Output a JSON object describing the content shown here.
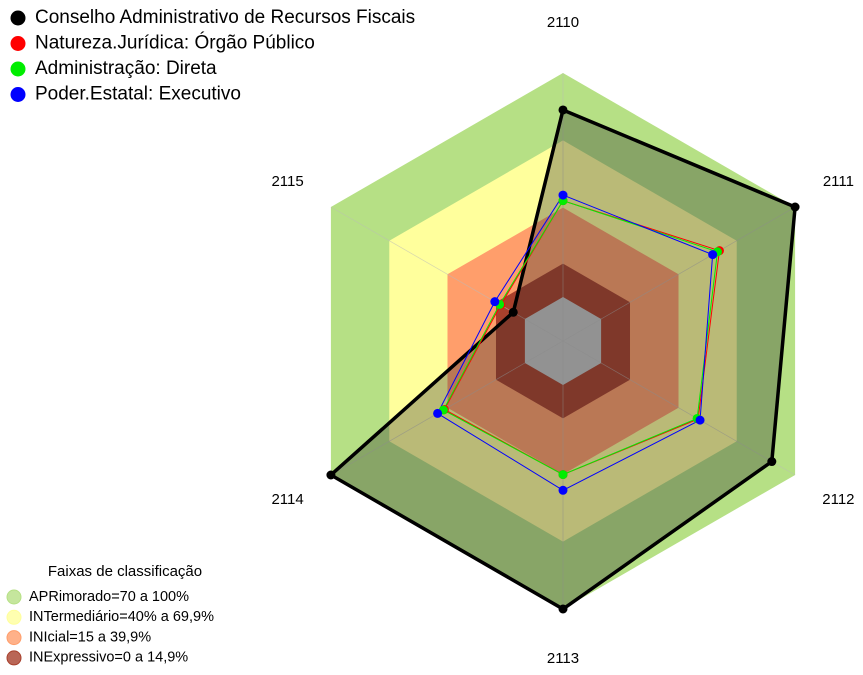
{
  "chart_data": {
    "type": "radar",
    "categories": [
      "2110",
      "2111",
      "2112",
      "2113",
      "2114",
      "2115"
    ],
    "rlim": [
      0,
      100
    ],
    "series": [
      {
        "name": "Conselho Administrativo de Recursos Fiscais",
        "color": "#000000",
        "values": [
          83.5,
          100,
          88,
          100,
          100,
          6
        ]
      },
      {
        "name": "Natureza.Jurídica: Órgão Público",
        "color": "#ff0000",
        "values": [
          43,
          61,
          50,
          40,
          41.5,
          12.5
        ]
      },
      {
        "name": "Administração: Direta",
        "color": "#00ee00",
        "values": [
          43,
          60,
          49.5,
          40,
          42,
          13
        ]
      },
      {
        "name": "Poder.Estatal: Executivo",
        "color": "#0000ff",
        "values": [
          45.5,
          57.5,
          51,
          47,
          45,
          15.5
        ]
      }
    ],
    "bands_title": "Faixas de classificação",
    "bands": [
      {
        "label": "APRimorado=70 a 100%",
        "color": "#b6e085",
        "range": [
          70,
          100
        ]
      },
      {
        "label": "INTermediário=40% a 69,9%",
        "color": "#ffff9c",
        "range": [
          40,
          69.9
        ]
      },
      {
        "label": "INIcial=15 a 39,9%",
        "color": "#ff9e6b",
        "range": [
          15,
          39.9
        ]
      },
      {
        "label": "INExpressivo=0 a 14,9%",
        "color": "#a8402c",
        "range": [
          0,
          14.9
        ]
      }
    ]
  }
}
